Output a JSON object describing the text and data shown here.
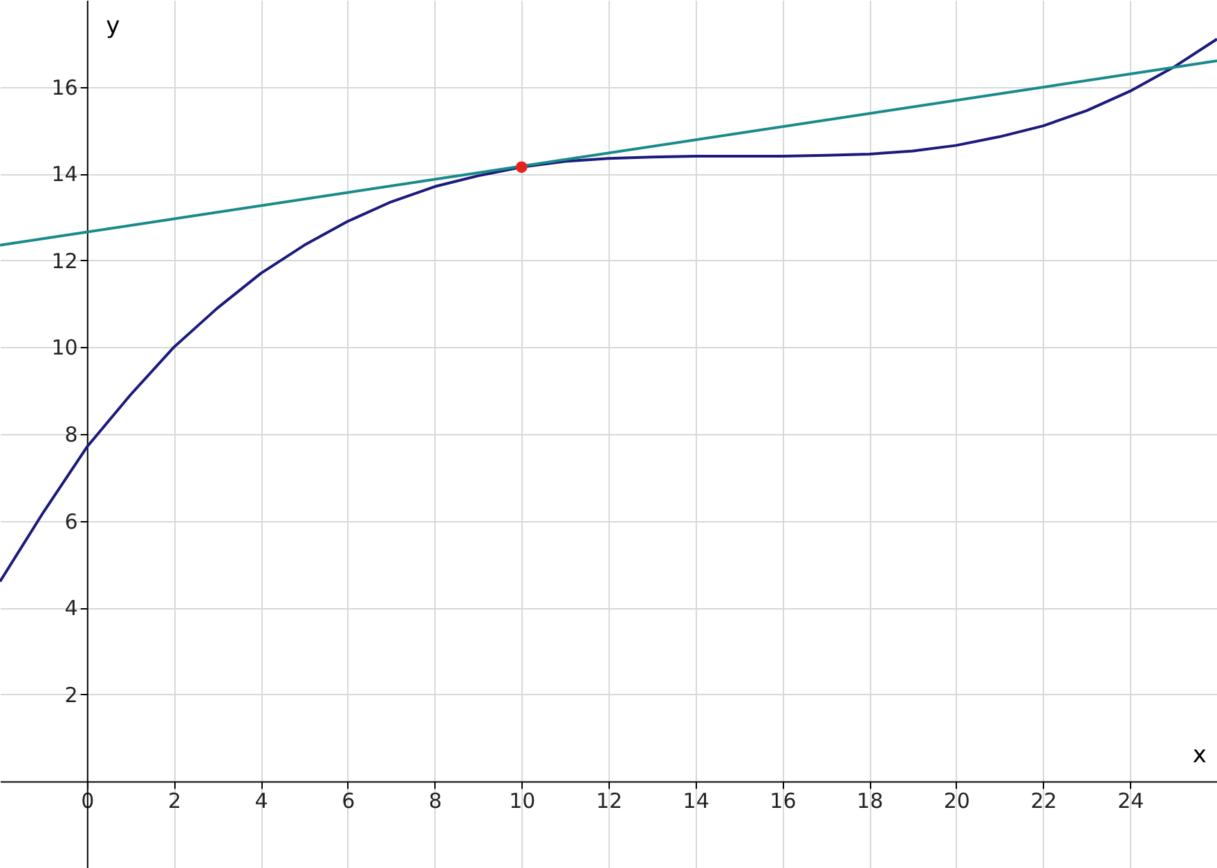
{
  "chart_data": {
    "type": "line",
    "xlabel": "x",
    "ylabel": "y",
    "xlim": [
      -2,
      26
    ],
    "ylim": [
      -2,
      18
    ],
    "xticks": [
      0,
      2,
      4,
      6,
      8,
      10,
      12,
      14,
      16,
      18,
      20,
      22,
      24
    ],
    "yticks": [
      2,
      4,
      6,
      8,
      10,
      12,
      14,
      16
    ],
    "grid": true,
    "legend": false,
    "marker": "none",
    "line_style": "solid",
    "series": [
      {
        "color": "#1c1a7c",
        "x": [
          -2,
          -1,
          0,
          1,
          2,
          3,
          4,
          5,
          6,
          7,
          8,
          9,
          10,
          11,
          12,
          13,
          14,
          15,
          16,
          17,
          18,
          19,
          20,
          21,
          22,
          23,
          24,
          25,
          26
        ],
        "values": [
          4.6,
          6.2,
          7.7,
          8.9,
          10.0,
          10.9,
          11.7,
          12.35,
          12.9,
          13.35,
          13.7,
          13.95,
          14.15,
          14.28,
          14.35,
          14.38,
          14.4,
          14.4,
          14.4,
          14.42,
          14.45,
          14.52,
          14.65,
          14.85,
          15.1,
          15.45,
          15.9,
          16.45,
          17.1
        ]
      },
      {
        "color": "#1a8a8a",
        "x": [
          -2,
          26
        ],
        "values": [
          12.35,
          16.6
        ]
      },
      {
        "type": "scatter",
        "color": "#e8231f",
        "marker": "circle",
        "x": [
          10
        ],
        "values": [
          14.15
        ]
      }
    ]
  }
}
